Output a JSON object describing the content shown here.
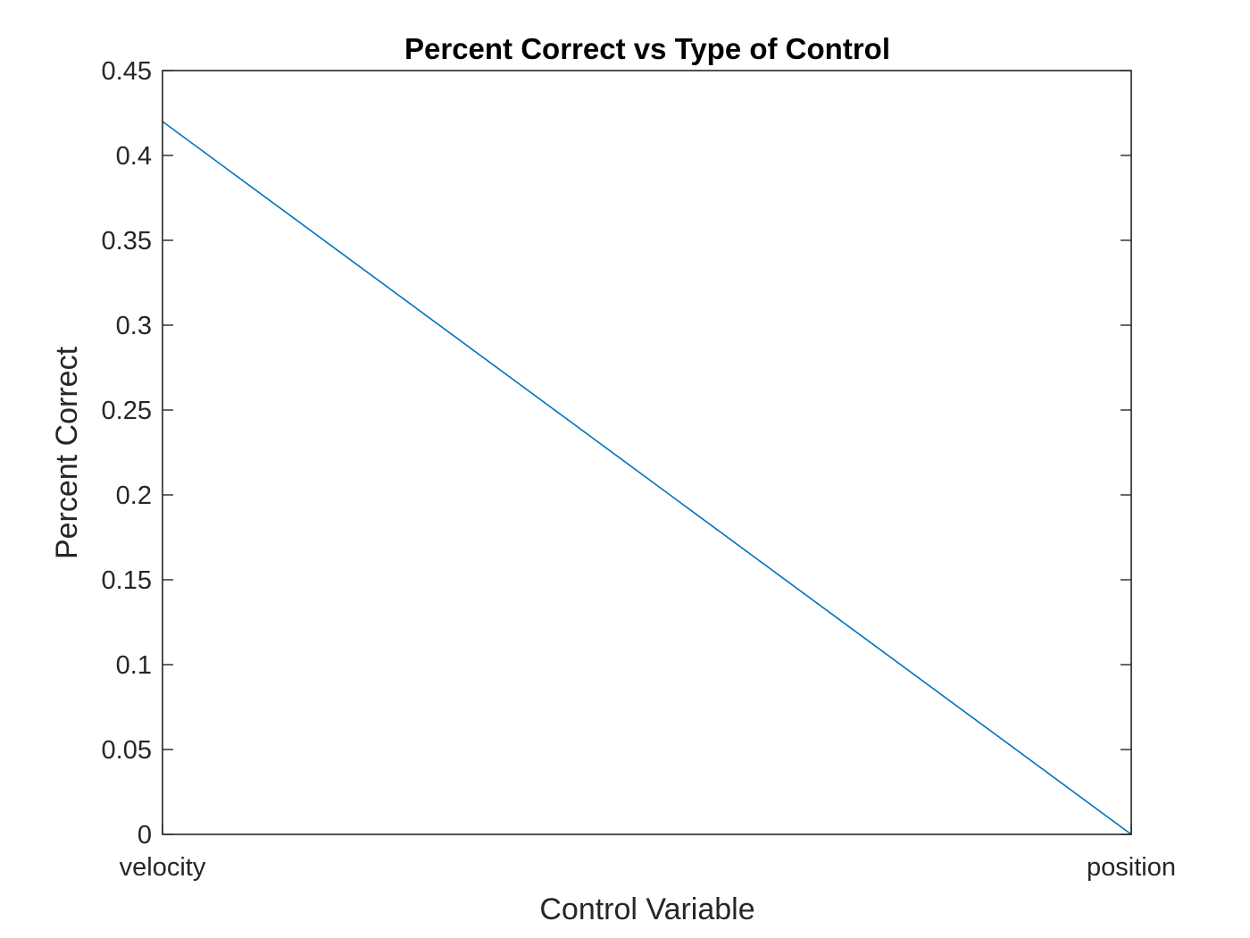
{
  "chart_data": {
    "type": "line",
    "title": "Percent Correct vs Type of Control",
    "xlabel": "Control Variable",
    "ylabel": "Percent Correct",
    "categories": [
      "velocity",
      "position"
    ],
    "series": [
      {
        "values": [
          0.42,
          0
        ]
      }
    ],
    "ylim": [
      0,
      0.45
    ],
    "yticks": [
      0,
      0.05,
      0.1,
      0.15,
      0.2,
      0.25,
      0.3,
      0.35,
      0.4,
      0.45
    ],
    "ytick_labels": [
      "0",
      "0.05",
      "0.1",
      "0.15",
      "0.2",
      "0.25",
      "0.3",
      "0.35",
      "0.4",
      "0.45"
    ],
    "grid": false,
    "legend": "none",
    "colors": {
      "line": "#0072BD",
      "axes": "#262626",
      "title": "#000000"
    }
  }
}
